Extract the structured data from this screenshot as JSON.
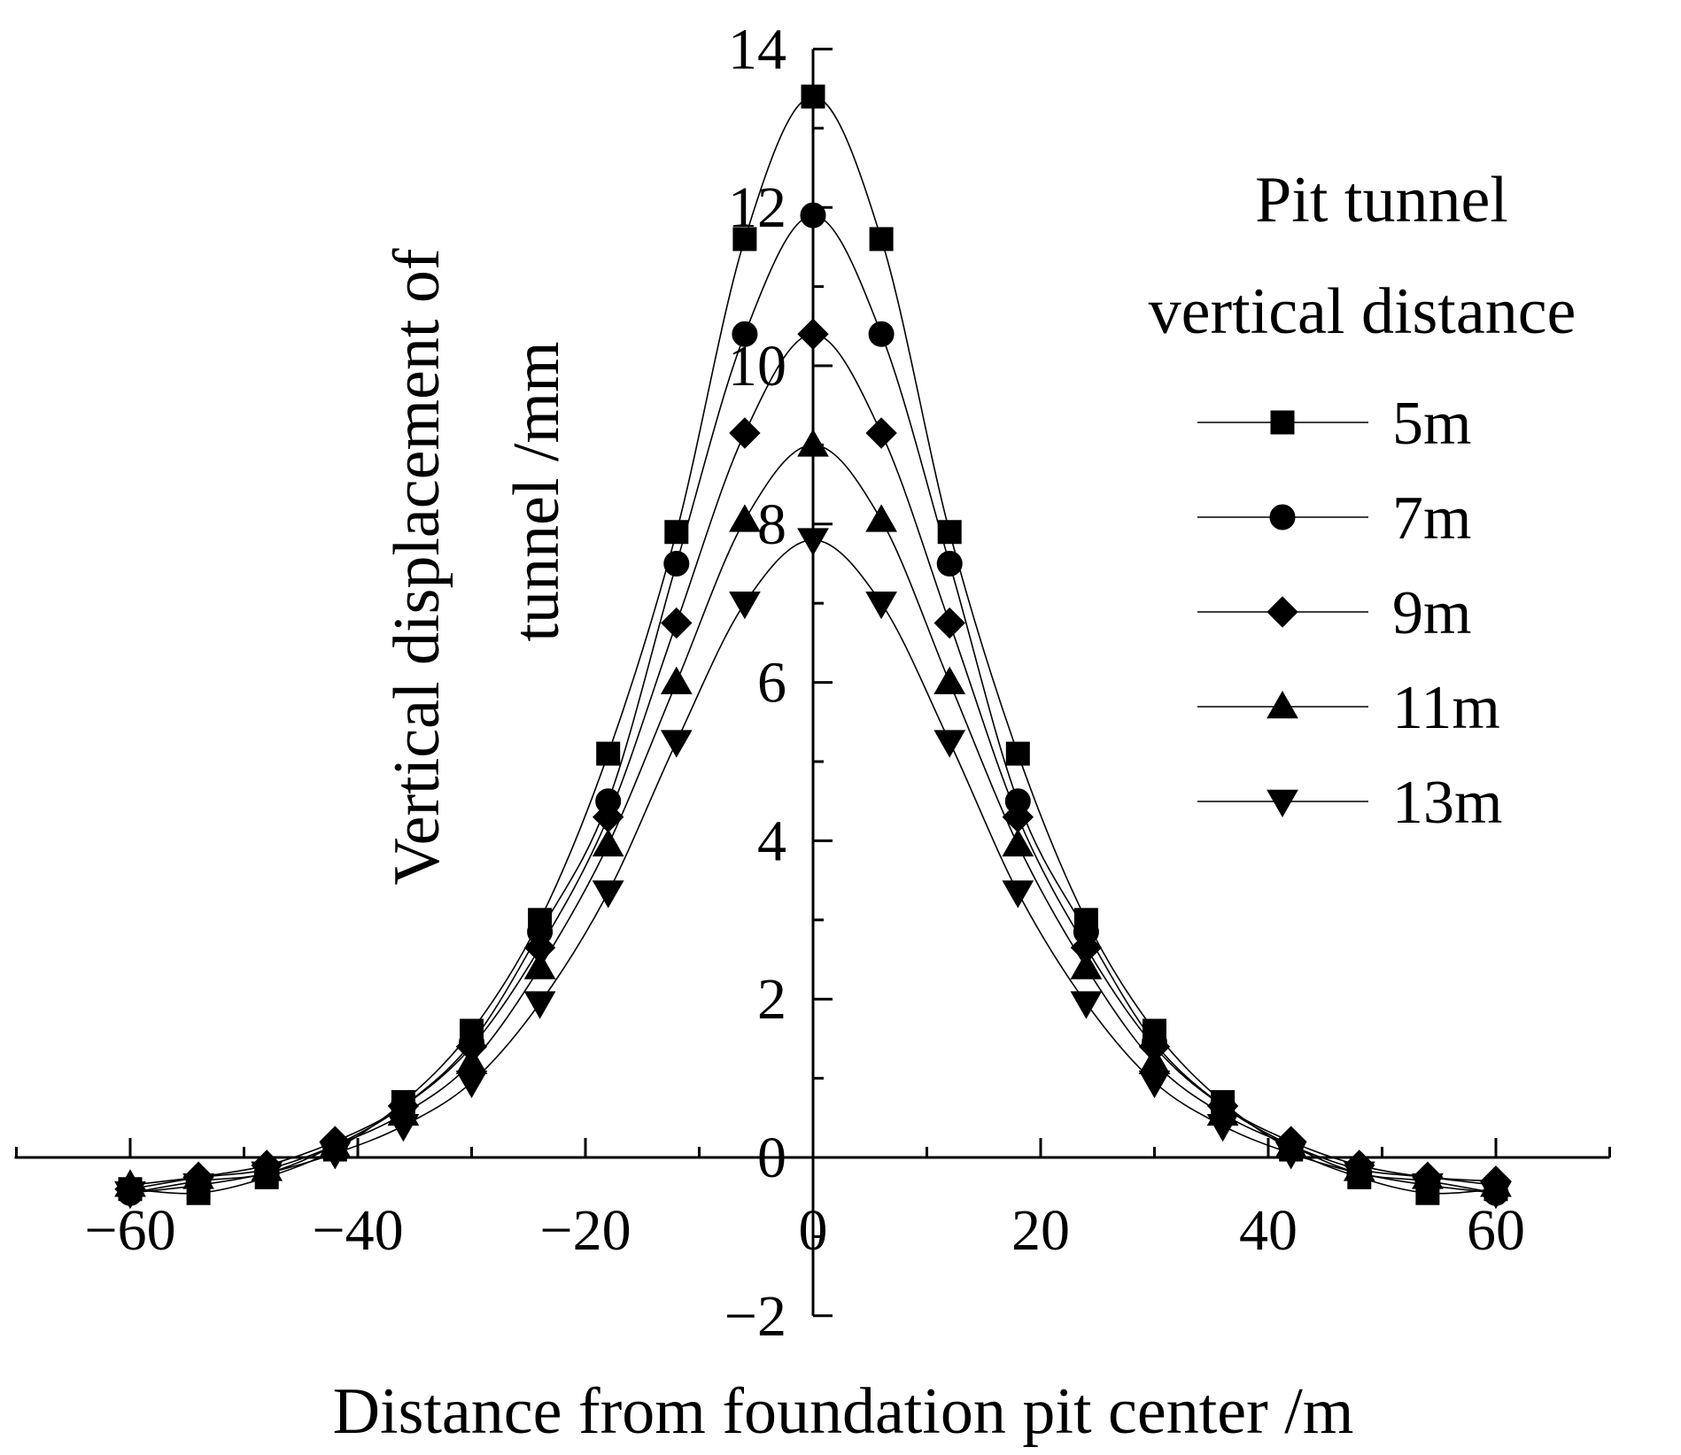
{
  "chart_data": {
    "type": "line",
    "xlabel": "Distance from foundation pit center /m",
    "ylabel_line1": "Vertical displacement of",
    "ylabel_line2": "tunnel /mm",
    "xlim": [
      -70,
      70
    ],
    "ylim": [
      -2,
      14
    ],
    "xticks": [
      -60,
      -40,
      -20,
      0,
      20,
      40,
      60
    ],
    "xtick_labels": [
      "−60",
      "−40",
      "−20",
      "0",
      "20",
      "40",
      "60"
    ],
    "yticks": [
      -2,
      0,
      2,
      4,
      6,
      8,
      10,
      12,
      14
    ],
    "ytick_labels": [
      "−2",
      "0",
      "2",
      "4",
      "6",
      "8",
      "10",
      "12",
      "14"
    ],
    "x": [
      -60,
      -54,
      -48,
      -42,
      -36,
      -30,
      -24,
      -18,
      -12,
      -6,
      0,
      6,
      12,
      18,
      24,
      30,
      36,
      42,
      48,
      54,
      60
    ],
    "legend_title_line1": "Pit tunnel",
    "legend_title_line2": "vertical distance",
    "series": [
      {
        "name": "5m",
        "marker": "square",
        "values": [
          -0.4,
          -0.45,
          -0.25,
          0.1,
          0.7,
          1.6,
          3.0,
          5.1,
          7.9,
          11.6,
          13.4,
          11.6,
          7.9,
          5.1,
          3.0,
          1.6,
          0.7,
          0.1,
          -0.25,
          -0.45,
          -0.4
        ]
      },
      {
        "name": "7m",
        "marker": "circle",
        "values": [
          -0.45,
          -0.3,
          -0.2,
          0.15,
          0.65,
          1.45,
          2.85,
          4.5,
          7.5,
          10.4,
          11.9,
          10.4,
          7.5,
          4.5,
          2.85,
          1.45,
          0.65,
          0.15,
          -0.2,
          -0.3,
          -0.45
        ]
      },
      {
        "name": "9m",
        "marker": "diamond",
        "values": [
          -0.4,
          -0.25,
          -0.1,
          0.2,
          0.65,
          1.4,
          2.65,
          4.3,
          6.75,
          9.15,
          10.4,
          9.15,
          6.75,
          4.3,
          2.65,
          1.4,
          0.65,
          0.2,
          -0.1,
          -0.25,
          -0.3
        ]
      },
      {
        "name": "11m",
        "marker": "triangle-up",
        "values": [
          -0.35,
          -0.25,
          -0.15,
          0.15,
          0.55,
          1.2,
          2.4,
          3.95,
          6.0,
          8.05,
          9.0,
          8.05,
          6.0,
          3.95,
          2.4,
          1.2,
          0.55,
          0.15,
          -0.15,
          -0.25,
          -0.35
        ]
      },
      {
        "name": "13m",
        "marker": "triangle-down",
        "values": [
          -0.45,
          -0.35,
          -0.2,
          0.05,
          0.4,
          0.95,
          1.95,
          3.35,
          5.25,
          7.0,
          7.8,
          7.0,
          5.25,
          3.35,
          1.95,
          0.95,
          0.4,
          0.05,
          -0.2,
          -0.35,
          -0.45
        ]
      }
    ]
  }
}
